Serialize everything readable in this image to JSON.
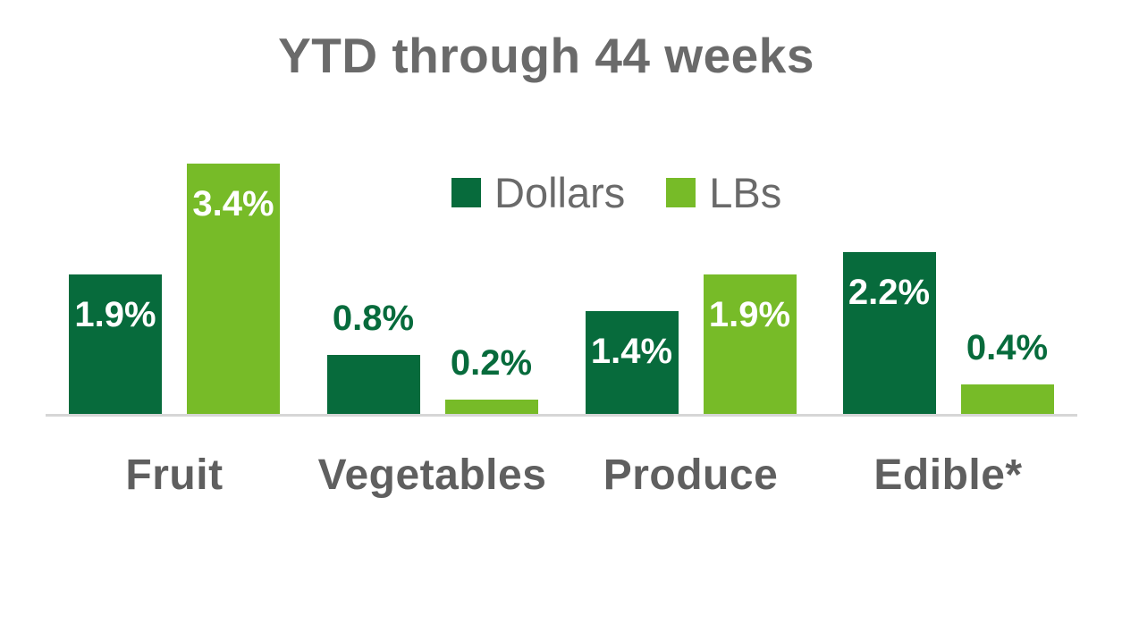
{
  "header": {
    "title": "YTD through 44 weeks",
    "title_color": "#6A6A6A"
  },
  "legend": {
    "text_color": "#6A6A6A",
    "items": [
      {
        "label": "Dollars",
        "color": "#076B3C"
      },
      {
        "label": "LBs",
        "color": "#77BB28"
      }
    ]
  },
  "axis": {
    "line_color": "#D6D6D6",
    "label_color": "#5F5F5F"
  },
  "chart_data": {
    "type": "bar",
    "title": "YTD through 44 weeks",
    "categories": [
      "Fruit",
      "Vegetables",
      "Produce",
      "Edible*"
    ],
    "series": [
      {
        "name": "Dollars",
        "color": "#076B3C",
        "values": [
          1.9,
          0.8,
          1.4,
          2.2
        ],
        "data_labels": [
          "1.9%",
          "0.8%",
          "1.4%",
          "2.2%"
        ]
      },
      {
        "name": "LBs",
        "color": "#77BB28",
        "values": [
          3.4,
          0.2,
          1.9,
          0.4
        ],
        "data_labels": [
          "3.4%",
          "0.2%",
          "1.9%",
          "0.4%"
        ]
      }
    ],
    "xlabel": "",
    "ylabel": "",
    "ylim": [
      0,
      3.4
    ],
    "unit": "percent",
    "grid": false,
    "y_axis_visible": false,
    "x_axis_line_visible": true,
    "legend_position": "inside-top-center",
    "data_label_inside_color": "#FFFFFF",
    "data_label_outside_color": "#076B3C"
  }
}
